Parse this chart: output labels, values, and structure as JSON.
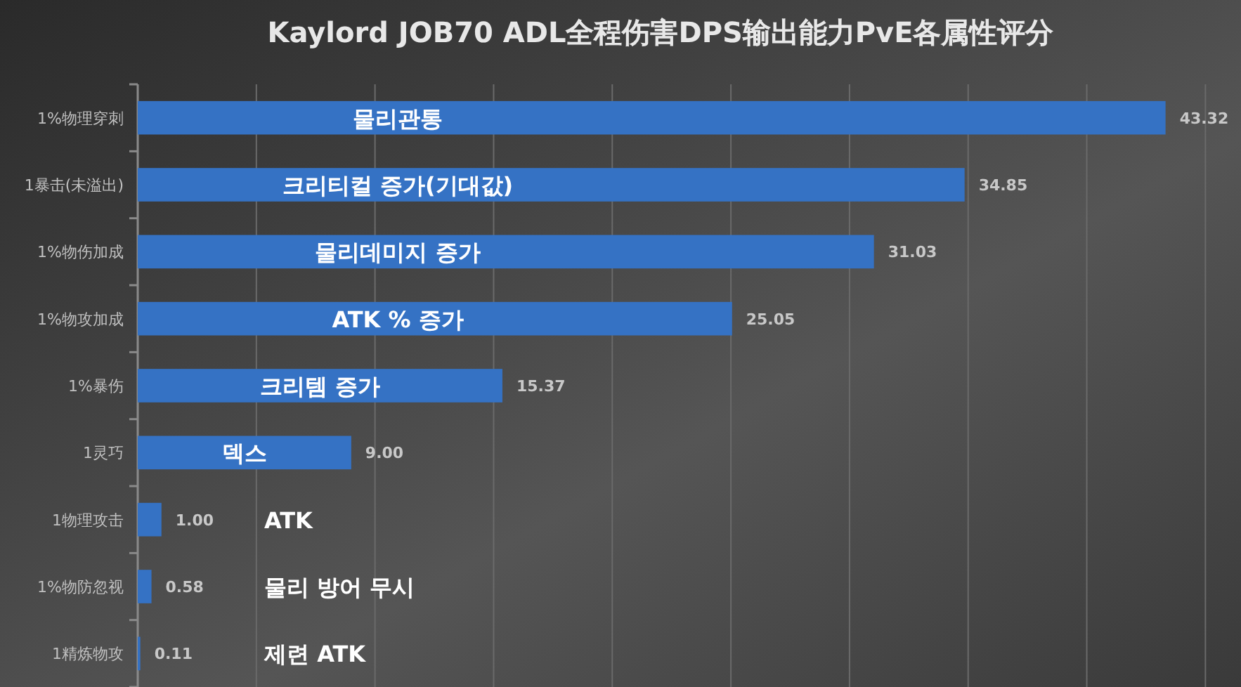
{
  "chart_data": {
    "type": "bar",
    "orientation": "horizontal",
    "title": "Kaylord JOB70 ADL全程伤害DPS输出能力PvE各属性评分",
    "categories": [
      "1%物理穿刺",
      "1暴击(未溢出)",
      "1%物伤加成",
      "1%物攻加成",
      "1%暴伤",
      "1灵巧",
      "1物理攻击",
      "1%物防忽视",
      "1精炼物攻"
    ],
    "values": [
      43.32,
      34.85,
      31.03,
      25.05,
      15.37,
      9.0,
      1.0,
      0.58,
      0.11
    ],
    "value_labels": [
      "43.32",
      "34.85",
      "31.03",
      "25.05",
      "15.37",
      "9.00",
      "1.00",
      "0.58",
      "0.11"
    ],
    "color": "#3572c4",
    "xlim": [
      0,
      46.5
    ],
    "xticks": [
      {
        "value": 0,
        "label": null
      },
      {
        "value": 5,
        "label": null
      },
      {
        "value": 10,
        "label": null
      },
      {
        "value": 15,
        "label": null
      },
      {
        "value": 20,
        "label": null
      },
      {
        "value": 25,
        "label": null
      },
      {
        "value": 30,
        "label": null
      },
      {
        "value": 35,
        "label": null
      },
      {
        "value": 40,
        "label": null
      },
      {
        "value": 45,
        "label": null
      }
    ],
    "tick_labels": "y",
    "grid": "x",
    "annotations": [
      "물리관통",
      "크리티컬 증가(기대값)",
      "물리데미지 증가",
      "ATK % 증가",
      "크리템 증가",
      "덱스",
      "ATK",
      "물리 방어 무시",
      "제련 ATK"
    ]
  }
}
